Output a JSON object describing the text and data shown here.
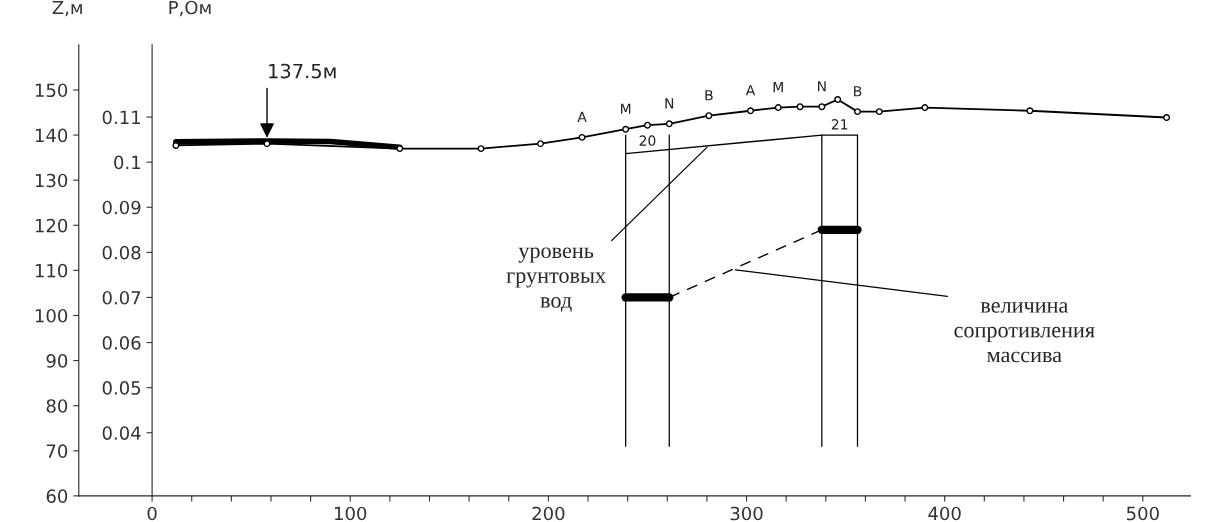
{
  "chart_data": {
    "type": "line",
    "ylabel": "Z,м",
    "y2label": "P,Ом",
    "xlim": [
      -37,
      524
    ],
    "xticks": [
      0,
      {
        "value": 20,
        "label": null
      },
      {
        "value": 40,
        "label": null
      },
      {
        "value": 60,
        "label": null
      },
      {
        "value": 80,
        "label": null
      },
      100,
      {
        "value": 120,
        "label": null
      },
      {
        "value": 140,
        "label": null
      },
      {
        "value": 160,
        "label": null
      },
      {
        "value": 180,
        "label": null
      },
      200,
      {
        "value": 220,
        "label": null
      },
      {
        "value": 240,
        "label": null
      },
      {
        "value": 260,
        "label": null
      },
      {
        "value": 280,
        "label": null
      },
      300,
      {
        "value": 320,
        "label": null
      },
      {
        "value": 340,
        "label": null
      },
      {
        "value": 360,
        "label": null
      },
      {
        "value": 380,
        "label": null
      },
      400,
      {
        "value": 420,
        "label": null
      },
      {
        "value": 440,
        "label": null
      },
      {
        "value": 460,
        "label": null
      },
      {
        "value": 480,
        "label": null
      },
      500
    ],
    "ylim": [
      60,
      160
    ],
    "yticks": [
      60,
      70,
      80,
      90,
      100,
      110,
      120,
      130,
      140,
      150
    ],
    "y2lim": [
      0.026,
      0.126
    ],
    "y2ticks": [
      0.04,
      0.05,
      0.06,
      0.07,
      0.08,
      0.09,
      0.1,
      0.11
    ],
    "grid": false,
    "series": [
      {
        "color": "#000000",
        "marker": "circle",
        "x": [
          12,
          58,
          125,
          166,
          196,
          217,
          239,
          250,
          261,
          281,
          302,
          316,
          327,
          338,
          346,
          356,
          367,
          390,
          443,
          512
        ],
        "values": [
          137.7,
          138.1,
          137.0,
          137.0,
          138.1,
          139.5,
          141.3,
          142.2,
          142.5,
          144.3,
          145.4,
          146.1,
          146.3,
          146.3,
          147.9,
          145.2,
          145.2,
          146.1,
          145.4,
          143.9
        ]
      },
      {
        "color": "#000000",
        "x": [
          12,
          58,
          90,
          125
        ],
        "values": [
          138.5,
          138.7,
          138.6,
          137.3
        ]
      },
      {
        "color": "#000000",
        "x": [
          239,
          338,
          356
        ],
        "values": [
          135.9,
          140.0,
          140.0
        ]
      },
      {
        "color": "#000000",
        "axis": "y2",
        "x": [
          239,
          261
        ],
        "values": [
          0.07,
          0.07
        ]
      },
      {
        "color": "#000000",
        "axis": "y2",
        "x": [
          338,
          356
        ],
        "values": [
          0.085,
          0.085
        ]
      },
      {
        "color": "#000000",
        "axis": "y2",
        "line_style": "dashed",
        "x": [
          261,
          338
        ],
        "values": [
          0.07,
          0.085
        ]
      }
    ],
    "ref_lines": [
      {
        "axis": "x",
        "value": 239
      },
      {
        "axis": "x",
        "value": 261
      },
      {
        "axis": "x",
        "value": 338
      },
      {
        "axis": "x",
        "value": 356
      }
    ],
    "annotations": [
      {
        "text": "A",
        "x": 217,
        "y": 139.5
      },
      {
        "text": "M",
        "x": 239,
        "y": 141.3
      },
      {
        "text": "N",
        "x": 261,
        "y": 142.5
      },
      {
        "text": "B",
        "x": 281,
        "y": 144.3
      },
      {
        "text": "A",
        "x": 302,
        "y": 145.4
      },
      {
        "text": "M",
        "x": 316,
        "y": 146.1
      },
      {
        "text": "N",
        "x": 338,
        "y": 146.3
      },
      {
        "text": "B",
        "x": 356,
        "y": 145.2
      },
      {
        "text": "20",
        "x": 250,
        "y": 136.4
      },
      {
        "text": "21",
        "x": 347,
        "y": 140.0
      },
      {
        "text": "137.5м",
        "x": 58,
        "y": 138.8
      },
      {
        "text": "уровень\nгрунтовых\nвод",
        "x": 281,
        "y": 137.7
      },
      {
        "text": "величина\nсопротивления\nмассива",
        "x": 293,
        "y": 110.2
      }
    ]
  }
}
